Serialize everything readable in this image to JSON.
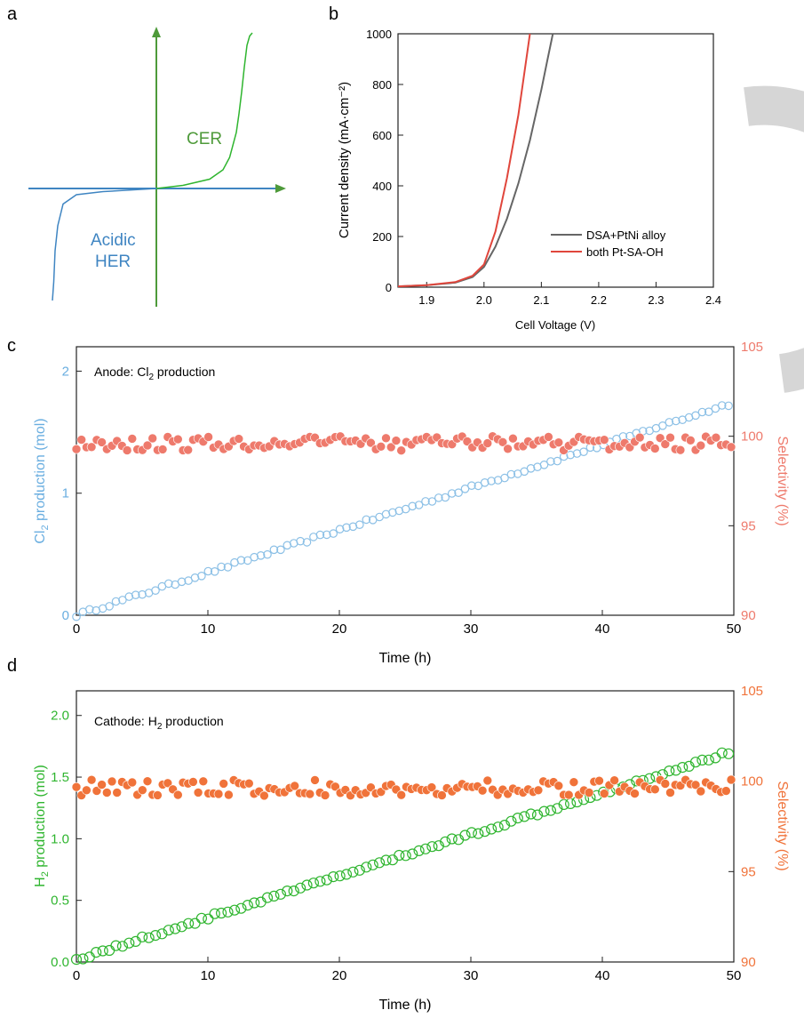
{
  "colors": {
    "axis": "#222222",
    "green": "#4e9a3a",
    "green_bright": "#2fb52f",
    "blue": "#3f85c2",
    "blue_light": "#8cc0e6",
    "red": "#e0463c",
    "salmon": "#ee7a6c",
    "orange": "#f0733a",
    "gray": "#666666",
    "watermark": "#cfcfcf"
  },
  "chart_data": [
    {
      "panel": "a",
      "type": "line",
      "title": "",
      "xlabel": "",
      "ylabel": "",
      "series": [
        {
          "name": "CER",
          "color": "green",
          "x": [
            0,
            0.2,
            0.4,
            0.5,
            0.55,
            0.6,
            0.62,
            0.64,
            0.66,
            0.68,
            0.7,
            0.72
          ],
          "y": [
            0,
            0.02,
            0.06,
            0.12,
            0.2,
            0.36,
            0.48,
            0.62,
            0.78,
            0.92,
            0.98,
            1.0
          ]
        },
        {
          "name": "Acidic HER",
          "color": "blue",
          "x": [
            0,
            -0.2,
            -0.4,
            -0.6,
            -0.7,
            -0.74,
            -0.76,
            -0.77,
            -0.78
          ],
          "y": [
            0,
            -0.01,
            -0.02,
            -0.04,
            -0.1,
            -0.24,
            -0.4,
            -0.6,
            -0.72
          ]
        }
      ],
      "labels": [
        "CER",
        "Acidic",
        "HER"
      ]
    },
    {
      "panel": "b",
      "type": "line",
      "xlabel": "Cell Voltage (V)",
      "ylabel": "Current density (mA·cm⁻²)",
      "xlim": [
        1.85,
        2.4
      ],
      "ylim": [
        0,
        1000
      ],
      "xticks": [
        "1.9",
        "2.0",
        "2.1",
        "2.2",
        "2.3",
        "2.4"
      ],
      "yticks": [
        "0",
        "200",
        "400",
        "600",
        "800",
        "1000"
      ],
      "legend": [
        "DSA+PtNi alloy",
        "both Pt-SA-OH"
      ],
      "series": [
        {
          "name": "DSA+PtNi alloy",
          "color": "gray",
          "x": [
            1.85,
            1.9,
            1.95,
            1.98,
            2.0,
            2.02,
            2.04,
            2.06,
            2.08,
            2.1,
            2.11,
            2.12
          ],
          "y": [
            3,
            8,
            18,
            40,
            80,
            160,
            270,
            410,
            580,
            780,
            890,
            1000
          ]
        },
        {
          "name": "both Pt-SA-OH",
          "color": "red",
          "x": [
            1.85,
            1.9,
            1.95,
            1.98,
            2.0,
            2.02,
            2.04,
            2.06,
            2.07,
            2.08
          ],
          "y": [
            3,
            8,
            20,
            45,
            90,
            220,
            430,
            680,
            840,
            1000
          ]
        }
      ]
    },
    {
      "panel": "c",
      "type": "scatter",
      "title": "Anode: Cl2 production",
      "title_main": "Anode: Cl",
      "title_sub": "2",
      "title_tail": " production",
      "xlabel": "Time (h)",
      "ylabel_main": "Cl",
      "ylabel_sub": "2",
      "ylabel_tail": " production (mol)",
      "y2label": "Selectivity (%)",
      "xlim": [
        0,
        50
      ],
      "ylim": [
        0,
        2.2
      ],
      "y2lim": [
        90,
        105
      ],
      "xticks": [
        "0",
        "10",
        "20",
        "30",
        "40",
        "50"
      ],
      "yticks": [
        "0",
        "1",
        "2"
      ],
      "y2ticks": [
        "90",
        "95",
        "100",
        "105"
      ],
      "production": {
        "start": 0.0,
        "end": 1.73,
        "points": 100,
        "color": "blue_light"
      },
      "selectivity": {
        "mean": 99.6,
        "range": [
          99.2,
          100.0
        ],
        "points": 130,
        "color": "salmon"
      }
    },
    {
      "panel": "d",
      "type": "scatter",
      "title": "Cathode: H2 production",
      "title_main": "Cathode: H",
      "title_sub": "2",
      "title_tail": " production",
      "xlabel": "Time (h)",
      "ylabel_main": "H",
      "ylabel_sub": "2",
      "ylabel_tail": " production (mol)",
      "y2label": "Selectivity (%)",
      "xlim": [
        0,
        50
      ],
      "ylim": [
        0,
        2.2
      ],
      "y2lim": [
        90,
        105
      ],
      "xticks": [
        "0",
        "10",
        "20",
        "30",
        "40",
        "50"
      ],
      "yticks": [
        "0.0",
        "0.5",
        "1.0",
        "1.5",
        "2.0"
      ],
      "y2ticks": [
        "90",
        "95",
        "100",
        "105"
      ],
      "production": {
        "start": 0.02,
        "end": 1.7,
        "points": 100,
        "color": "green_bright"
      },
      "selectivity": {
        "mean": 99.6,
        "range": [
          99.2,
          100.1
        ],
        "points": 130,
        "color": "orange"
      }
    }
  ]
}
